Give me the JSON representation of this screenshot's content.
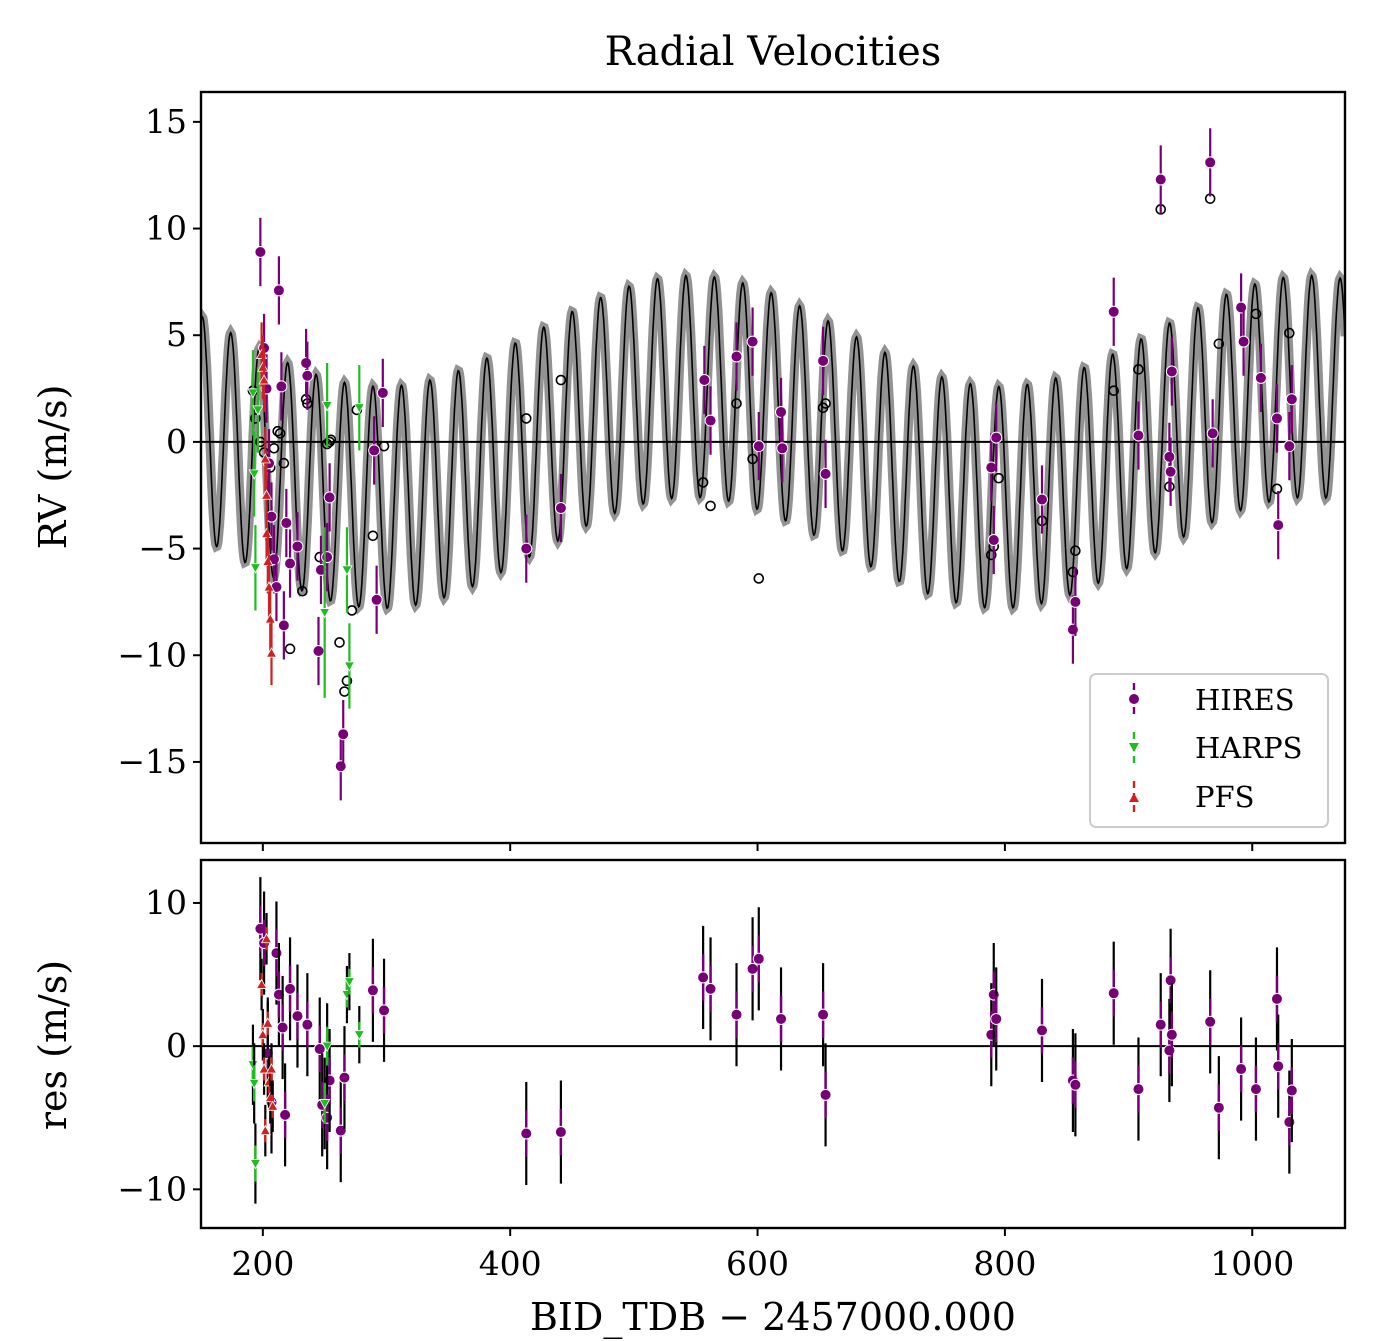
{
  "chart_data": [
    {
      "type": "scatter",
      "panel": "top",
      "title": "Radial Velocities",
      "xlabel": "",
      "ylabel": "RV (m/s)",
      "xlim": [
        150,
        1075
      ],
      "ylim": [
        -18.8,
        16.4
      ],
      "xticks": [
        200,
        400,
        600,
        800,
        1000
      ],
      "yticks": [
        15,
        10,
        5,
        0,
        -5,
        -10,
        -15
      ],
      "ytick_labels": [
        "15",
        "10",
        "5",
        "0",
        "−5",
        "−10",
        "−15"
      ],
      "grid": false,
      "legend_position": "lower-right",
      "zero_line": 0,
      "model_curve": {
        "color": "#000000",
        "band_color": "#808080",
        "components": [
          {
            "period": 23,
            "amplitude": 5.2
          },
          {
            "period": 500,
            "amplitude": 2.6
          }
        ]
      },
      "series": [
        {
          "name": "HIRES",
          "color": "#770077",
          "marker": "circle",
          "x": [
            198,
            201,
            203,
            205,
            207,
            209,
            211,
            213,
            215,
            217,
            219,
            222,
            228,
            235,
            236,
            245,
            247,
            252,
            254,
            263,
            265,
            290,
            292,
            297,
            413,
            441,
            557,
            562,
            583,
            596,
            601,
            619,
            620,
            653,
            655,
            789,
            791,
            793,
            830,
            855,
            857,
            888,
            908,
            933,
            934,
            935,
            926,
            966,
            968,
            991,
            993,
            1007,
            1020,
            1021,
            1030,
            1032
          ],
          "y": [
            8.9,
            4.4,
            2.5,
            -1.0,
            -3.5,
            -5.5,
            -6.8,
            7.1,
            2.6,
            -8.6,
            -3.8,
            -5.7,
            -4.9,
            3.7,
            3.1,
            -9.8,
            -6.0,
            -5.4,
            -2.6,
            -15.2,
            -13.7,
            -0.4,
            -7.4,
            2.3,
            -5.0,
            -3.1,
            2.9,
            1.0,
            4.0,
            4.7,
            -0.2,
            1.4,
            -0.3,
            3.8,
            -1.5,
            -1.2,
            -4.6,
            0.2,
            -2.7,
            -8.8,
            -7.5,
            6.1,
            0.3,
            -0.7,
            -1.4,
            3.3,
            12.3,
            13.1,
            0.4,
            6.3,
            4.7,
            3.0,
            1.1,
            -3.9,
            -0.2,
            2.0
          ],
          "err": [
            1.6,
            1.6,
            1.6,
            1.6,
            1.6,
            1.6,
            1.6,
            1.6,
            1.6,
            1.6,
            1.6,
            1.6,
            1.6,
            1.6,
            1.6,
            1.6,
            1.6,
            1.6,
            1.6,
            1.6,
            1.6,
            1.6,
            1.6,
            1.6,
            1.6,
            1.6,
            1.6,
            1.6,
            1.6,
            1.6,
            1.6,
            1.6,
            1.6,
            1.6,
            1.6,
            1.6,
            1.6,
            1.6,
            1.6,
            1.6,
            1.6,
            1.6,
            1.6,
            1.6,
            1.6,
            1.6,
            1.6,
            1.6,
            1.6,
            1.6,
            1.6,
            1.6,
            1.6,
            1.6,
            1.6,
            1.6
          ]
        },
        {
          "name": "HARPS",
          "color": "#22bb22",
          "marker": "triangle-down",
          "x": [
            192,
            193,
            194,
            196,
            250,
            252,
            268,
            270,
            278
          ],
          "y": [
            2.3,
            -1.5,
            -5.9,
            1.5,
            -8.0,
            1.7,
            -6.0,
            -10.5,
            1.6
          ],
          "err": [
            2.0,
            2.0,
            2.0,
            2.0,
            4.0,
            2.0,
            2.0,
            2.0,
            2.0
          ]
        },
        {
          "name": "PFS",
          "color": "#cc2222",
          "marker": "triangle-up",
          "x": [
            199,
            200,
            201,
            202,
            203,
            203,
            204,
            205,
            206,
            207
          ],
          "y": [
            4.1,
            3.5,
            2.9,
            -0.8,
            -2.5,
            -4.3,
            -5.6,
            -6.8,
            -8.3,
            -9.9
          ],
          "err": [
            1.5,
            1.5,
            1.5,
            1.5,
            1.5,
            1.5,
            1.5,
            1.5,
            1.5,
            1.5
          ]
        }
      ],
      "model_points": {
        "x": [
          192,
          194,
          198,
          201,
          206,
          209,
          212,
          214,
          217,
          222,
          232,
          235,
          236,
          246,
          252,
          254,
          255,
          262,
          266,
          268,
          272,
          276,
          289,
          298,
          413,
          441,
          556,
          562,
          583,
          596,
          601,
          653,
          655,
          789,
          791,
          795,
          830,
          855,
          857,
          888,
          908,
          926,
          933,
          966,
          973,
          991,
          1003,
          1020,
          1030
        ],
        "y": [
          2.4,
          1.1,
          0.0,
          -0.5,
          -1.2,
          -0.3,
          0.5,
          0.4,
          -1.0,
          -9.7,
          -7.0,
          2.0,
          1.8,
          -5.4,
          -0.1,
          0.0,
          0.1,
          -9.4,
          -11.7,
          -11.2,
          -7.9,
          1.5,
          -4.4,
          -0.2,
          1.1,
          2.9,
          -1.9,
          -3.0,
          1.8,
          -0.8,
          -6.4,
          1.6,
          1.8,
          -5.3,
          -4.9,
          -1.7,
          -3.7,
          -6.1,
          -5.1,
          2.4,
          3.4,
          10.9,
          -2.1,
          11.4,
          4.6,
          6.3,
          6.0,
          -2.2,
          5.1
        ]
      }
    },
    {
      "type": "scatter",
      "panel": "bottom",
      "xlabel": "BID_TDB − 2457000.000",
      "ylabel": "res (m/s)",
      "xlim": [
        150,
        1075
      ],
      "ylim": [
        -12.7,
        13.0
      ],
      "xticks": [
        200,
        400,
        600,
        800,
        1000
      ],
      "xtick_labels": [
        "200",
        "400",
        "600",
        "800",
        "1000"
      ],
      "yticks": [
        10,
        0,
        -10
      ],
      "ytick_labels": [
        "10",
        "0",
        "−10"
      ],
      "grid": false,
      "zero_line": 0,
      "series": [
        {
          "name": "HIRES",
          "color": "#770077",
          "marker": "circle",
          "x": [
            198,
            201,
            204,
            207,
            211,
            213,
            216,
            218,
            222,
            228,
            236,
            246,
            248,
            252,
            254,
            263,
            266,
            289,
            298,
            413,
            441,
            556,
            562,
            583,
            596,
            601,
            619,
            653,
            655,
            789,
            791,
            793,
            830,
            855,
            857,
            888,
            908,
            926,
            933,
            934,
            935,
            966,
            973,
            991,
            1003,
            1020,
            1021,
            1030,
            1032
          ],
          "y": [
            8.2,
            7.2,
            -0.5,
            -3.9,
            6.5,
            3.6,
            1.3,
            -4.8,
            4.0,
            2.1,
            1.5,
            -0.2,
            -4.1,
            -5.0,
            -2.4,
            -5.9,
            -2.2,
            3.9,
            2.5,
            -6.1,
            -6.0,
            4.8,
            4.0,
            2.2,
            5.4,
            6.1,
            1.9,
            2.2,
            -3.4,
            0.8,
            3.6,
            1.9,
            1.1,
            -2.4,
            -2.7,
            3.7,
            -3.0,
            1.5,
            -0.3,
            4.6,
            0.8,
            1.7,
            -4.3,
            -1.6,
            -3.0,
            3.3,
            -1.4,
            -5.3,
            -3.1
          ],
          "err": [
            3.6,
            3.6,
            3.6,
            3.6,
            3.6,
            3.6,
            3.6,
            3.6,
            3.6,
            3.6,
            3.6,
            3.6,
            3.6,
            3.6,
            3.6,
            3.6,
            3.6,
            3.6,
            3.6,
            3.6,
            3.6,
            3.6,
            3.6,
            3.6,
            3.6,
            3.6,
            3.6,
            3.6,
            3.6,
            3.6,
            3.6,
            3.6,
            3.6,
            3.6,
            3.6,
            3.6,
            3.6,
            3.6,
            3.6,
            3.6,
            3.6,
            3.6,
            3.6,
            3.6,
            3.6,
            3.6,
            3.6,
            3.6,
            3.6
          ]
        },
        {
          "name": "HARPS",
          "color": "#22bb22",
          "marker": "triangle-down",
          "x": [
            192,
            193,
            194,
            250,
            252,
            268,
            270,
            278
          ],
          "y": [
            -1.3,
            -2.6,
            -8.2,
            -4.0,
            0.0,
            3.6,
            4.5,
            0.8
          ],
          "err": [
            2.8,
            2.8,
            2.8,
            3.2,
            3.0,
            2.0,
            2.0,
            2.0
          ]
        },
        {
          "name": "PFS",
          "color": "#cc2222",
          "marker": "triangle-up",
          "x": [
            199,
            200,
            201,
            202,
            203,
            204,
            205,
            206,
            207,
            208
          ],
          "y": [
            4.3,
            0.8,
            -1.6,
            -5.9,
            7.5,
            1.6,
            -2.5,
            -3.6,
            -1.6,
            -4.2
          ],
          "err": [
            1.8,
            1.8,
            1.8,
            1.8,
            1.8,
            1.8,
            1.8,
            1.8,
            1.8,
            1.8
          ]
        }
      ]
    }
  ]
}
